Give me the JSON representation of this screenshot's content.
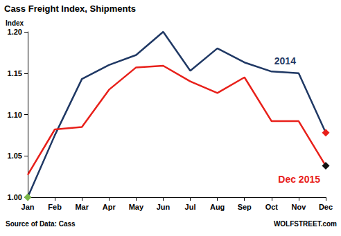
{
  "chart_data": {
    "type": "line",
    "title": "Cass Freight Index, Shipments",
    "ylabel": "Index",
    "categories": [
      "Jan",
      "Feb",
      "Mar",
      "Apr",
      "May",
      "Jun",
      "Jul",
      "Aug",
      "Sep",
      "Oct",
      "Nov",
      "Dec"
    ],
    "series": [
      {
        "name": "2014",
        "color": "#1f3864",
        "marker": "diamond",
        "colors": [
          "#7ab648",
          null,
          null,
          null,
          null,
          null,
          null,
          null,
          null,
          null,
          null,
          "#e8201a"
        ],
        "values": [
          1.0,
          1.075,
          1.143,
          1.16,
          1.172,
          1.2,
          1.153,
          1.18,
          1.163,
          1.152,
          1.15,
          1.078
        ]
      },
      {
        "name": "Dec 2015",
        "color": "#e8201a",
        "marker": "diamond",
        "colors": [
          null,
          null,
          null,
          null,
          null,
          null,
          null,
          null,
          null,
          null,
          null,
          "#111111"
        ],
        "values": [
          1.027,
          1.082,
          1.085,
          1.13,
          1.157,
          1.159,
          1.14,
          1.126,
          1.145,
          1.092,
          1.092,
          1.038
        ]
      }
    ],
    "ylim": [
      1.0,
      1.2
    ],
    "yticks": [
      {
        "value": 1.0,
        "label": "1.00"
      },
      {
        "value": 1.05,
        "label": "1.05"
      },
      {
        "value": 1.1,
        "label": "1.10"
      },
      {
        "value": 1.15,
        "label": "1.15"
      },
      {
        "value": 1.2,
        "label": "1.20"
      }
    ],
    "grid": false,
    "annotations": [
      "Source of Data: Cass",
      "WOLFSTREET.com"
    ]
  }
}
